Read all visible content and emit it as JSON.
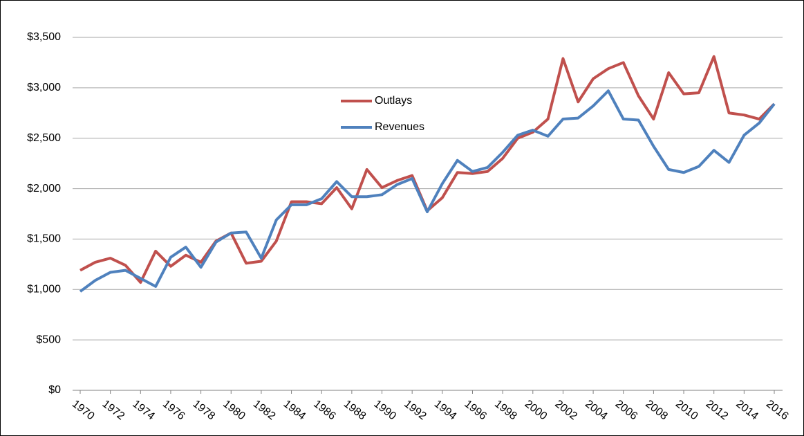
{
  "chart_data": {
    "type": "line",
    "x": [
      1970,
      1971,
      1972,
      1973,
      1974,
      1975,
      1976,
      1977,
      1978,
      1979,
      1980,
      1981,
      1982,
      1983,
      1984,
      1985,
      1986,
      1987,
      1988,
      1989,
      1990,
      1991,
      1992,
      1993,
      1994,
      1995,
      1996,
      1997,
      1998,
      1999,
      2000,
      2001,
      2002,
      2003,
      2004,
      2005,
      2006,
      2007,
      2008,
      2009,
      2010,
      2011,
      2012,
      2013,
      2014,
      2015,
      2016
    ],
    "series": [
      {
        "name": "Outlays",
        "color": "#c0504d",
        "values": [
          1190,
          1270,
          1310,
          1240,
          1070,
          1380,
          1230,
          1340,
          1270,
          1480,
          1560,
          1260,
          1280,
          1480,
          1870,
          1870,
          1850,
          2010,
          1800,
          2190,
          2010,
          2080,
          2130,
          1780,
          1910,
          2160,
          2150,
          2170,
          2300,
          2500,
          2560,
          2690,
          3290,
          2860,
          3090,
          3190,
          3250,
          2920,
          2690,
          3150,
          2940,
          2950,
          3310,
          2750,
          2730,
          2690,
          2840
        ]
      },
      {
        "name": "Revenues",
        "color": "#4f81bd",
        "values": [
          980,
          1090,
          1170,
          1190,
          1110,
          1030,
          1320,
          1420,
          1220,
          1470,
          1560,
          1570,
          1310,
          1690,
          1840,
          1840,
          1900,
          2070,
          1920,
          1920,
          1940,
          2040,
          2100,
          1770,
          2050,
          2280,
          2170,
          2210,
          2360,
          2530,
          2580,
          2520,
          2690,
          2700,
          2820,
          2970,
          2690,
          2680,
          2420,
          2190,
          2160,
          2220,
          2380,
          2260,
          2530,
          2650,
          2840
        ]
      }
    ],
    "xlim": [
      1970,
      2016
    ],
    "xticks": [
      1970,
      1972,
      1974,
      1976,
      1978,
      1980,
      1982,
      1984,
      1986,
      1988,
      1990,
      1992,
      1994,
      1996,
      1998,
      2000,
      2002,
      2004,
      2006,
      2008,
      2010,
      2012,
      2014,
      2016
    ],
    "ylim": [
      0,
      3500
    ],
    "yticks": [
      {
        "value": 0,
        "label": "$0"
      },
      {
        "value": 500,
        "label": "$500"
      },
      {
        "value": 1000,
        "label": "$1,000"
      },
      {
        "value": 1500,
        "label": "$1,500"
      },
      {
        "value": 2000,
        "label": "$2,000"
      },
      {
        "value": 2500,
        "label": "$2,500"
      },
      {
        "value": 3000,
        "label": "$3,000"
      },
      {
        "value": 3500,
        "label": "$3,500"
      }
    ],
    "grid": true,
    "legend": "upper center"
  }
}
